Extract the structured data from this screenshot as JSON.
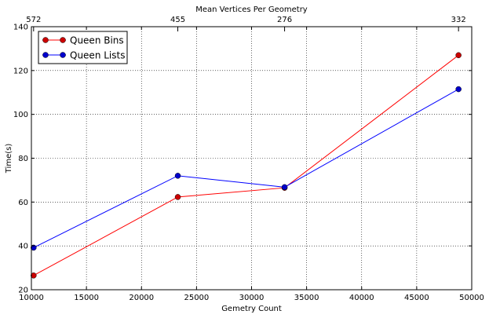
{
  "chart_data": {
    "type": "line",
    "xlabel": "Gemetry Count",
    "ylabel": "Time(s)",
    "top_axis_label": "Mean Vertices Per Geometry",
    "xlim": [
      10000,
      50000
    ],
    "ylim": [
      20,
      140
    ],
    "x_ticks": [
      10000,
      15000,
      20000,
      25000,
      30000,
      35000,
      40000,
      45000,
      50000
    ],
    "y_ticks": [
      20,
      40,
      60,
      80,
      100,
      120,
      140
    ],
    "top_ticks": [
      {
        "x": 10200,
        "label": "572"
      },
      {
        "x": 23300,
        "label": "455"
      },
      {
        "x": 33000,
        "label": "276"
      },
      {
        "x": 48800,
        "label": "332"
      }
    ],
    "grid": true,
    "legend_position": "top-left",
    "series": [
      {
        "name": "Queen Bins",
        "color": "#ff0000",
        "marker_color": "#cc0000",
        "x": [
          10200,
          23300,
          33000,
          48800
        ],
        "y": [
          26.5,
          62.3,
          66.5,
          127.0
        ]
      },
      {
        "name": "Queen Lists",
        "color": "#0000ff",
        "marker_color": "#0000cc",
        "x": [
          10200,
          23300,
          33000,
          48800
        ],
        "y": [
          39.2,
          72.0,
          66.8,
          111.5
        ]
      }
    ]
  }
}
